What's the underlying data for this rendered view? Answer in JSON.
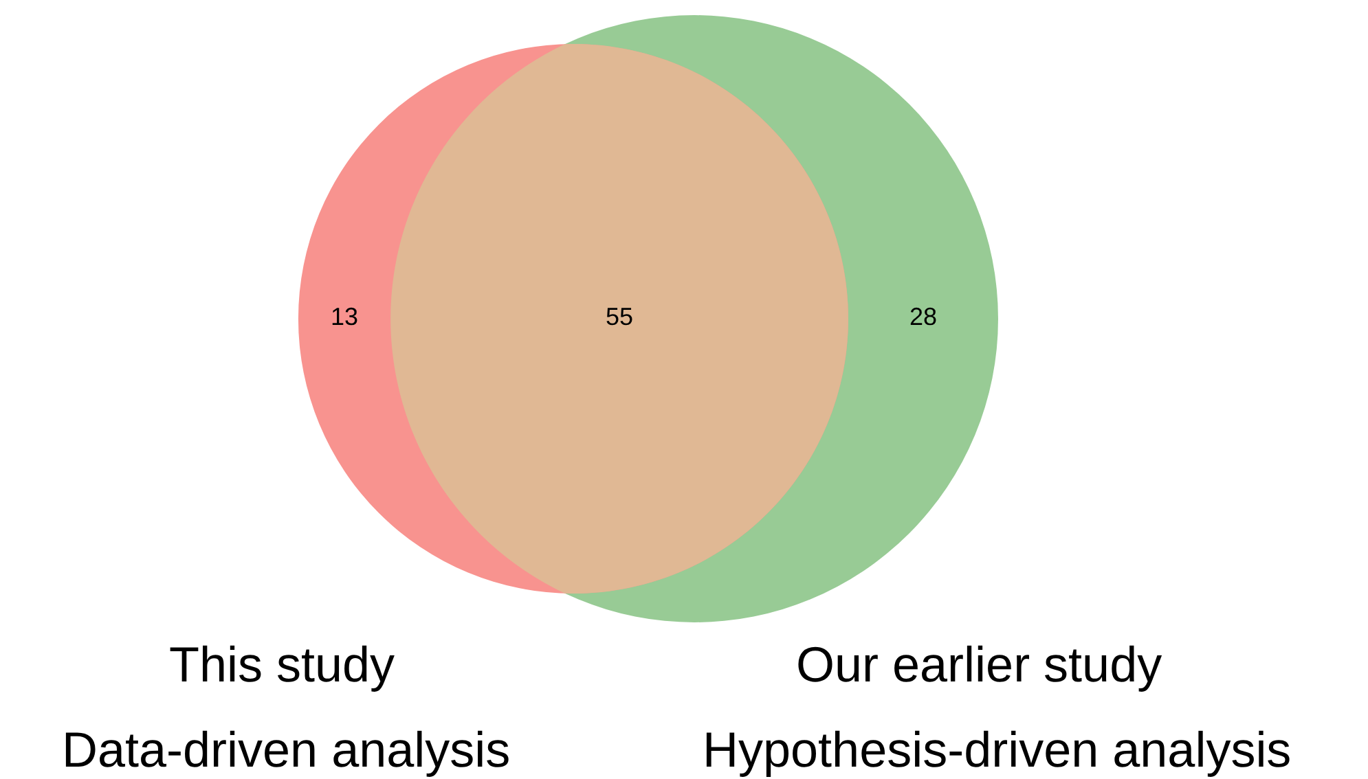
{
  "chart_data": {
    "type": "other",
    "categories": [
      null,
      null,
      null
    ],
    "values": [
      13,
      55,
      28
    ],
    "colors": [
      "#f8938f",
      "#e0b894",
      "#98cb95"
    ],
    "data_labels": true,
    "annotations": [
      "This study",
      "Data-driven analysis",
      "Our earlier study",
      "Hypothesis-driven analysis"
    ]
  }
}
